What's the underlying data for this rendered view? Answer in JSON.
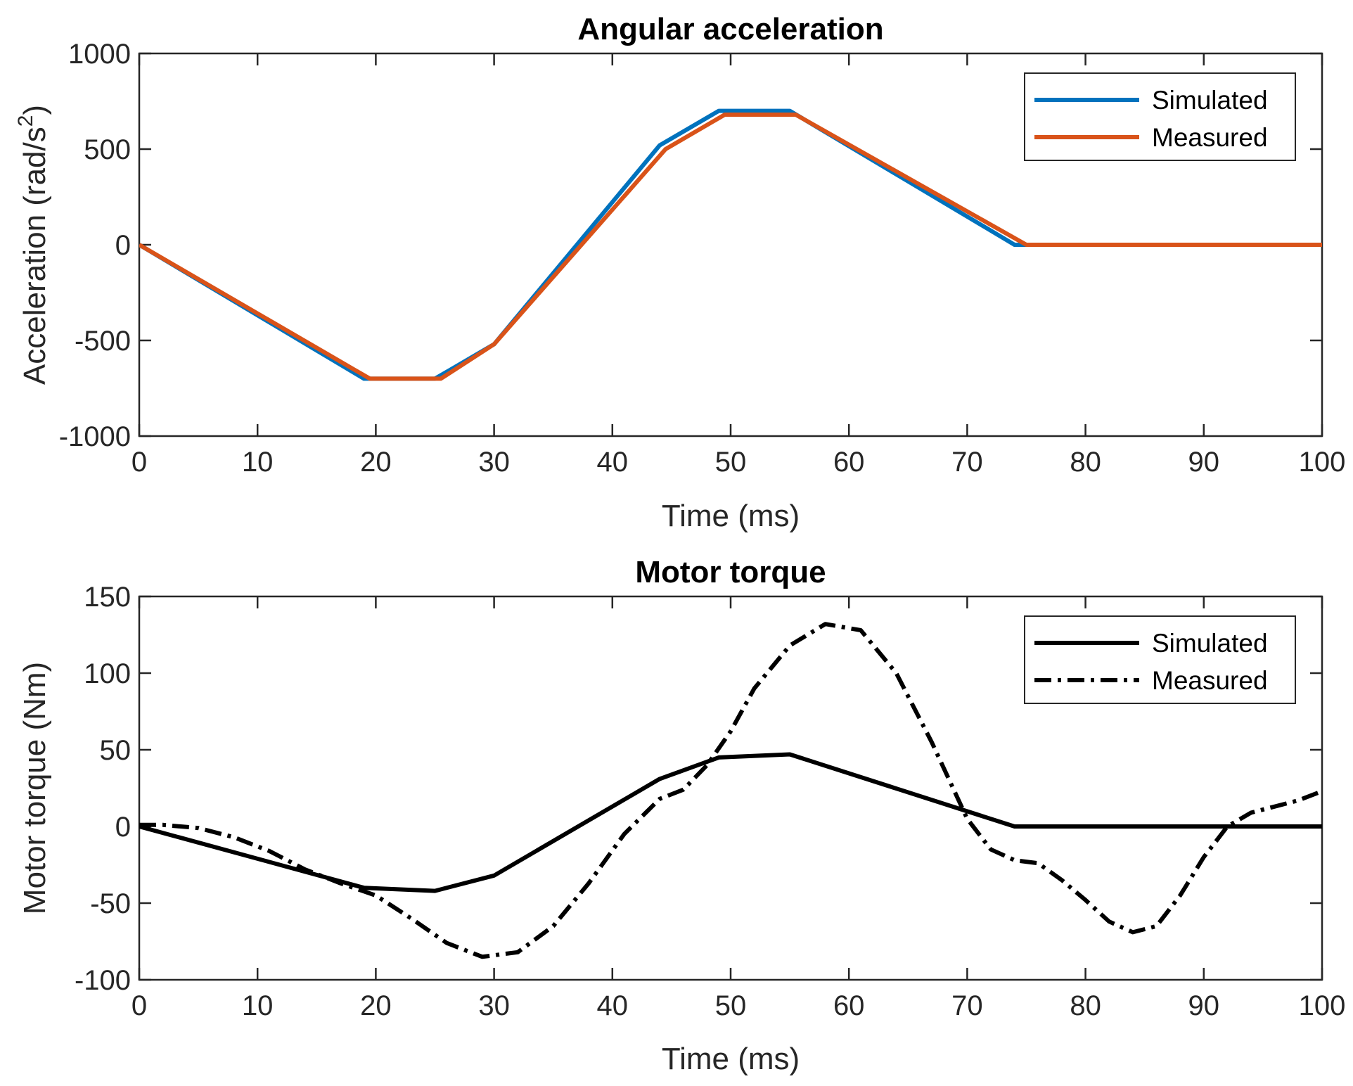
{
  "chart_data": [
    {
      "type": "line",
      "title": "Angular acceleration",
      "xlabel": "Time (ms)",
      "ylabel": "Acceleration (rad/s",
      "ylabel_sup": "2",
      "ylabel_close": ")",
      "xlim": [
        0,
        100
      ],
      "ylim": [
        -1000,
        1000
      ],
      "xticks": [
        0,
        10,
        20,
        30,
        40,
        50,
        60,
        70,
        80,
        90,
        100
      ],
      "yticks": [
        -1000,
        -500,
        0,
        500,
        1000
      ],
      "legend_position": "top-right",
      "series": [
        {
          "name": "Simulated",
          "color": "#0072BD",
          "style": "solid",
          "x": [
            0,
            19,
            25,
            30,
            44,
            49,
            55,
            74,
            100
          ],
          "y": [
            0,
            -700,
            -700,
            -520,
            520,
            700,
            700,
            0,
            0
          ]
        },
        {
          "name": "Measured",
          "color": "#D95319",
          "style": "solid",
          "x": [
            0,
            19.5,
            25.5,
            30,
            44.5,
            49.5,
            55.5,
            75,
            100
          ],
          "y": [
            0,
            -700,
            -700,
            -520,
            500,
            680,
            680,
            0,
            0
          ]
        }
      ]
    },
    {
      "type": "line",
      "title": "Motor torque",
      "xlabel": "Time (ms)",
      "ylabel": "Motor torque (Nm)",
      "xlim": [
        0,
        100
      ],
      "ylim": [
        -100,
        150
      ],
      "xticks": [
        0,
        10,
        20,
        30,
        40,
        50,
        60,
        70,
        80,
        90,
        100
      ],
      "yticks": [
        -100,
        -50,
        0,
        50,
        100,
        150
      ],
      "legend_position": "top-right",
      "series": [
        {
          "name": "Simulated",
          "color": "#000000",
          "style": "solid",
          "x": [
            0,
            19,
            25,
            30,
            44,
            49,
            55,
            74,
            100
          ],
          "y": [
            0,
            -40,
            -42,
            -32,
            31,
            45,
            47,
            0,
            0
          ]
        },
        {
          "name": "Measured",
          "color": "#000000",
          "style": "dashdot",
          "x": [
            0,
            2,
            5,
            8,
            11,
            14,
            17,
            20,
            23,
            26,
            29,
            32,
            35,
            38,
            41,
            44,
            46,
            48,
            50,
            52,
            55,
            58,
            61,
            64,
            67,
            70,
            72,
            74,
            76,
            78,
            80,
            82,
            84,
            86,
            88,
            90,
            92,
            94,
            96,
            98,
            100
          ],
          "y": [
            1,
            1,
            -1,
            -7,
            -16,
            -28,
            -37,
            -45,
            -60,
            -76,
            -85,
            -82,
            -65,
            -37,
            -5,
            18,
            24,
            40,
            62,
            90,
            118,
            132,
            128,
            100,
            55,
            5,
            -15,
            -22,
            -24,
            -35,
            -48,
            -62,
            -69,
            -65,
            -45,
            -20,
            0,
            9,
            13,
            17,
            23
          ]
        }
      ]
    }
  ]
}
